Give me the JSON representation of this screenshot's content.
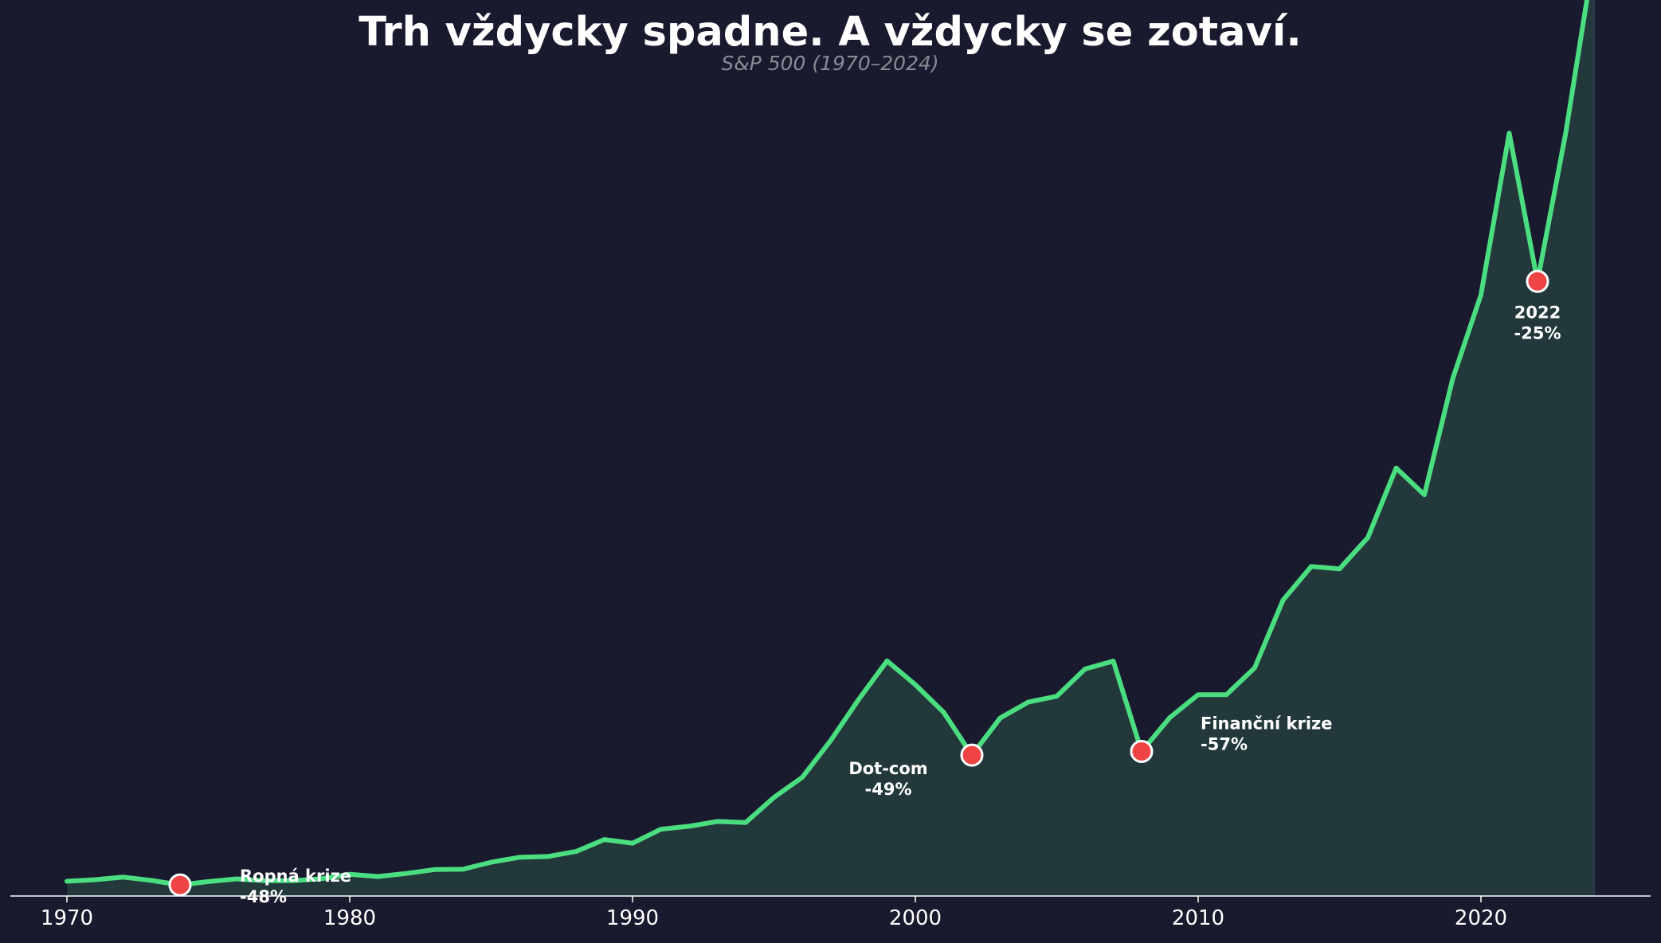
{
  "title": "Trh vždycky spadne. A vždycky se zotaví.",
  "subtitle": "S&P 500 (1970–2024)",
  "colors": {
    "background": "#1a1a2e",
    "line": "#4ade80",
    "fill": "#22383b",
    "marker": "#ef4444",
    "marker_stroke": "#ffffff",
    "axis": "#ffffff",
    "subtitle": "#8a8a95",
    "text": "#ffffff"
  },
  "chart_data": {
    "type": "area",
    "title": "Trh vždycky spadne. A vždycky se zotaví.",
    "subtitle": "S&P 500 (1970–2024)",
    "xlabel": "",
    "ylabel": "",
    "xlim": [
      1968,
      2026
    ],
    "ylim": [
      0,
      5200
    ],
    "x_ticks": [
      1970,
      1980,
      1990,
      2000,
      2010,
      2020
    ],
    "grid": false,
    "series": [
      {
        "x": [
          1970,
          1971,
          1972,
          1973,
          1974,
          1975,
          1976,
          1977,
          1978,
          1979,
          1980,
          1981,
          1982,
          1983,
          1984,
          1985,
          1986,
          1987,
          1988,
          1989,
          1990,
          1991,
          1992,
          1993,
          1994,
          1995,
          1996,
          1997,
          1998,
          1999,
          2000,
          2001,
          2002,
          2003,
          2004,
          2005,
          2006,
          2007,
          2008,
          2009,
          2010,
          2011,
          2012,
          2013,
          2014,
          2015,
          2016,
          2017,
          2018,
          2019,
          2020,
          2021,
          2022,
          2023,
          2024
        ],
        "y": [
          92,
          102,
          118,
          97,
          69,
          90,
          107,
          95,
          96,
          108,
          136,
          122,
          141,
          165,
          167,
          211,
          242,
          247,
          278,
          353,
          330,
          417,
          436,
          466,
          459,
          616,
          741,
          970,
          1229,
          1469,
          1320,
          1148,
          880,
          1112,
          1212,
          1248,
          1418,
          1468,
          903,
          1115,
          1258,
          1258,
          1426,
          1848,
          2059,
          2044,
          2239,
          2674,
          2507,
          3231,
          3756,
          4766,
          3840,
          4770,
          5880
        ]
      }
    ],
    "annotations": [
      {
        "x": 1974,
        "y": 69,
        "label": "Ropná krize",
        "value": "-48%"
      },
      {
        "x": 2002,
        "y": 880,
        "label": "Dot-com",
        "value": "-49%"
      },
      {
        "x": 2008,
        "y": 903,
        "label": "Finanční krize",
        "value": "-57%"
      },
      {
        "x": 2022,
        "y": 3840,
        "label": "2022",
        "value": "-25%"
      }
    ]
  }
}
